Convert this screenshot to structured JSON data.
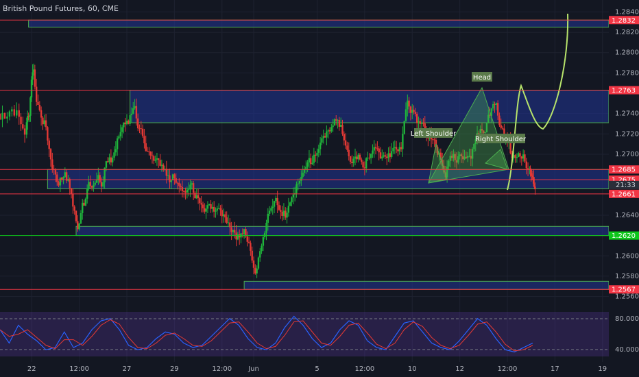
{
  "header": {
    "title": "British Pound Futures, 60, CME"
  },
  "countdown": "21:33",
  "chart_data": {
    "type": "candlestick",
    "title": "British Pound Futures, 60, CME",
    "y_axis": {
      "min": 1.2555,
      "max": 1.2845,
      "ticks": [
        "1.2840",
        "1.2820",
        "1.2800",
        "1.2780",
        "1.2740",
        "1.2720",
        "1.2700",
        "1.2640",
        "1.2600",
        "1.2580",
        "1.2560"
      ]
    },
    "x_axis": {
      "ticks": [
        {
          "label": "22",
          "x": 0.5
        },
        {
          "label": "12:00",
          "x": 1.25
        },
        {
          "label": "27",
          "x": 2.0
        },
        {
          "label": "29",
          "x": 2.75
        },
        {
          "label": "12:00",
          "x": 3.5
        },
        {
          "label": "Jun",
          "x": 4.0
        },
        {
          "label": "5",
          "x": 5.0
        },
        {
          "label": "12:00",
          "x": 5.75
        },
        {
          "label": "10",
          "x": 6.5
        },
        {
          "label": "12",
          "x": 7.25
        },
        {
          "label": "12:00",
          "x": 8.0
        },
        {
          "label": "17",
          "x": 8.75
        },
        {
          "label": "19",
          "x": 9.5
        }
      ],
      "range": [
        0,
        9.6
      ]
    },
    "price_tags": [
      {
        "value": "1.2832",
        "color": "#f23645"
      },
      {
        "value": "1.2763",
        "color": "#f23645"
      },
      {
        "value": "1.2685",
        "color": "#f23645"
      },
      {
        "value": "1.2675",
        "color": "#f23645"
      },
      {
        "value": "1.2661",
        "color": "#f23645"
      },
      {
        "value": "1.2620",
        "color": "#0ec61b"
      },
      {
        "value": "1.2567",
        "color": "#f23645"
      }
    ],
    "zones": [
      {
        "x0": 0.45,
        "x1": 9.6,
        "y0": 1.2825,
        "y1": 1.2832
      },
      {
        "x0": 2.05,
        "x1": 9.6,
        "y0": 1.2731,
        "y1": 1.2763
      },
      {
        "x0": 0.75,
        "x1": 9.6,
        "y0": 1.2666,
        "y1": 1.2685
      },
      {
        "x0": 1.2,
        "x1": 9.6,
        "y0": 1.262,
        "y1": 1.2629
      },
      {
        "x0": 3.85,
        "x1": 9.6,
        "y0": 1.2567,
        "y1": 1.2575
      }
    ],
    "pattern_labels": [
      "Left Shoulder",
      "Head",
      "Right Shoulder"
    ],
    "candles_approx": [
      [
        0.0,
        1.274
      ],
      [
        0.15,
        1.2735
      ],
      [
        0.3,
        1.2705
      ],
      [
        0.42,
        1.2745
      ],
      [
        0.48,
        1.2805
      ],
      [
        0.55,
        1.2725
      ],
      [
        0.65,
        1.273
      ],
      [
        0.75,
        1.268
      ],
      [
        0.85,
        1.267
      ],
      [
        0.95,
        1.2685
      ],
      [
        1.05,
        1.266
      ],
      [
        1.15,
        1.2625
      ],
      [
        1.25,
        1.266
      ],
      [
        1.35,
        1.268
      ],
      [
        1.45,
        1.2665
      ],
      [
        1.55,
        1.2675
      ],
      [
        1.65,
        1.271
      ],
      [
        1.75,
        1.27
      ],
      [
        1.85,
        1.2725
      ],
      [
        1.95,
        1.274
      ],
      [
        2.05,
        1.276
      ],
      [
        2.15,
        1.271
      ],
      [
        2.25,
        1.269
      ],
      [
        2.35,
        1.2685
      ],
      [
        2.45,
        1.269
      ],
      [
        2.55,
        1.268
      ],
      [
        2.65,
        1.2675
      ],
      [
        2.75,
        1.267
      ],
      [
        2.85,
        1.267
      ],
      [
        2.95,
        1.2665
      ],
      [
        3.05,
        1.265
      ],
      [
        3.15,
        1.264
      ],
      [
        3.25,
        1.264
      ],
      [
        3.35,
        1.2635
      ],
      [
        3.45,
        1.263
      ],
      [
        3.55,
        1.262
      ],
      [
        3.65,
        1.2615
      ],
      [
        3.75,
        1.2615
      ],
      [
        3.85,
        1.262
      ],
      [
        3.95,
        1.258
      ],
      [
        4.05,
        1.262
      ],
      [
        4.15,
        1.265
      ],
      [
        4.25,
        1.266
      ],
      [
        4.35,
        1.265
      ],
      [
        4.45,
        1.264
      ],
      [
        4.55,
        1.266
      ],
      [
        4.65,
        1.2675
      ],
      [
        4.75,
        1.268
      ],
      [
        4.85,
        1.2695
      ],
      [
        4.95,
        1.271
      ],
      [
        5.05,
        1.2725
      ],
      [
        5.15,
        1.272
      ],
      [
        5.25,
        1.2735
      ],
      [
        5.35,
        1.2715
      ],
      [
        5.45,
        1.27
      ],
      [
        5.55,
        1.2685
      ],
      [
        5.65,
        1.269
      ],
      [
        5.75,
        1.2705
      ],
      [
        5.85,
        1.272
      ],
      [
        5.95,
        1.269
      ],
      [
        6.05,
        1.2695
      ],
      [
        6.15,
        1.27
      ],
      [
        6.25,
        1.272
      ],
      [
        6.35,
        1.2755
      ],
      [
        6.45,
        1.274
      ],
      [
        6.55,
        1.2725
      ],
      [
        6.65,
        1.272
      ],
      [
        6.75,
        1.2715
      ],
      [
        6.85,
        1.269
      ],
      [
        6.95,
        1.267
      ],
      [
        7.05,
        1.27
      ],
      [
        7.15,
        1.2695
      ],
      [
        7.25,
        1.269
      ],
      [
        7.35,
        1.27
      ],
      [
        7.45,
        1.272
      ],
      [
        7.55,
        1.2725
      ],
      [
        7.65,
        1.274
      ],
      [
        7.75,
        1.275
      ],
      [
        7.85,
        1.272
      ],
      [
        7.95,
        1.27
      ],
      [
        8.05,
        1.2685
      ],
      [
        8.15,
        1.2695
      ],
      [
        8.25,
        1.269
      ],
      [
        8.35,
        1.2675
      ],
      [
        8.4,
        1.2668
      ]
    ],
    "oscillator": {
      "levels": [
        "80.0000",
        "40.0000"
      ],
      "range": [
        0,
        100
      ],
      "series": [
        60,
        30,
        70,
        50,
        35,
        15,
        20,
        55,
        20,
        30,
        60,
        80,
        85,
        60,
        25,
        15,
        20,
        40,
        55,
        50,
        30,
        20,
        25,
        45,
        65,
        85,
        70,
        40,
        20,
        15,
        30,
        65,
        90,
        70,
        40,
        20,
        30,
        60,
        80,
        70,
        35,
        20,
        15,
        45,
        75,
        80,
        55,
        30,
        20,
        15,
        35,
        60,
        85,
        70,
        40,
        15,
        10,
        20,
        30
      ]
    }
  }
}
